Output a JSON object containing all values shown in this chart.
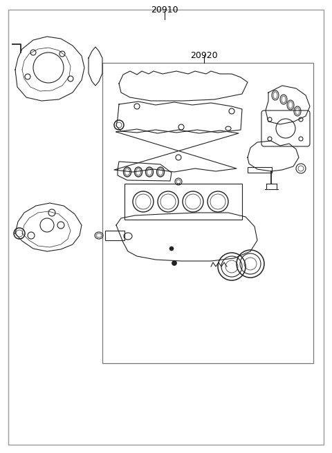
{
  "bg_color": "#ffffff",
  "line_color": "#222222",
  "label_20910": "20910",
  "label_20920": "20920",
  "fig_width": 4.8,
  "fig_height": 6.56,
  "dpi": 100
}
